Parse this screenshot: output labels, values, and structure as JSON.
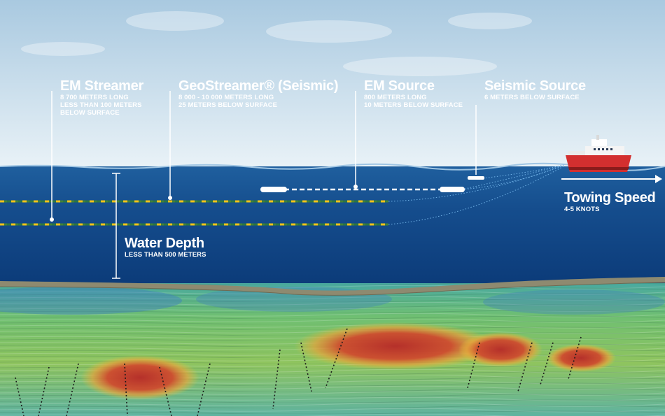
{
  "labels": {
    "em_streamer": {
      "title": "EM Streamer",
      "details": [
        "8 700 METERS LONG",
        "LESS THAN 100 METERS",
        "BELOW SURFACE"
      ]
    },
    "geostreamer": {
      "title": "GeoStreamer® (Seismic)",
      "details": [
        "8 000 - 10 000 METERS LONG",
        "25 METERS BELOW SURFACE"
      ]
    },
    "em_source": {
      "title": "EM Source",
      "details": [
        "800 METERS LONG",
        "10 METERS BELOW SURFACE"
      ]
    },
    "seismic_source": {
      "title": "Seismic Source",
      "details": [
        "6 METERS BELOW SURFACE"
      ]
    },
    "towing_speed": {
      "title": "Towing Speed",
      "details": [
        "4-5 KNOTS"
      ]
    },
    "water_depth": {
      "title": "Water Depth",
      "details": [
        "LESS THAN 500 METERS"
      ]
    }
  },
  "colors": {
    "sky_top": "#a9c9e0",
    "sky_bottom": "#e9f2f7",
    "water_top": "#1f5f9e",
    "water_bottom": "#0b3a78",
    "seabed": "#8e8a70",
    "streamer": "#f2c418",
    "ship_hull": "#d32f2f",
    "anomaly": "#c0392b"
  },
  "icons": [
    "vessel-icon",
    "arrow-right-icon"
  ]
}
